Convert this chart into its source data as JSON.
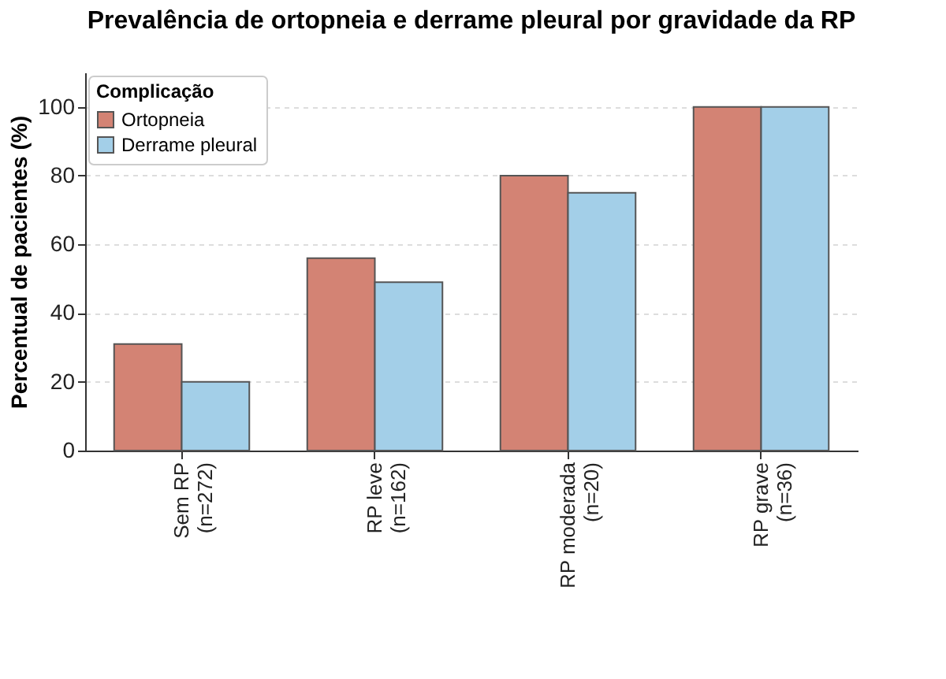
{
  "chart_data": {
    "type": "bar",
    "title": "Prevalência de ortopneia e derrame pleural por gravidade da RP",
    "categories": [
      "Sem RP\n(n=272)",
      "RP leve\n(n=162)",
      "RP moderada\n(n=20)",
      "RP grave\n(n=36)"
    ],
    "series": [
      {
        "name": "Ortopneia",
        "color": "#d38374",
        "values": [
          31,
          56,
          80,
          100
        ]
      },
      {
        "name": "Derrame pleural",
        "color": "#a3cfe8",
        "values": [
          20,
          49,
          75,
          100
        ]
      }
    ],
    "ylabel": "Percentual de pacientes (%)",
    "legend_title": "Complicação",
    "ylim": [
      0,
      110
    ],
    "yticks": [
      0,
      20,
      40,
      60,
      80,
      100
    ],
    "grid": "y",
    "legend": "top left"
  }
}
